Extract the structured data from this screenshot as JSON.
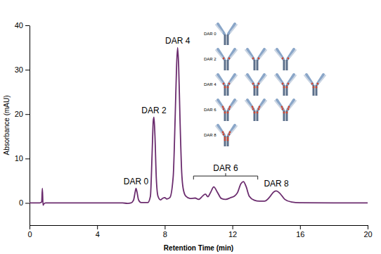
{
  "chart_data": {
    "type": "line",
    "x_label": "Retention Time (min)",
    "y_label": "Absorbance (mAU)",
    "color": "#6b2c6e",
    "x": [
      0,
      0.6,
      0.72,
      0.76,
      0.8,
      0.85,
      0.95,
      2,
      4,
      5.5,
      5.8,
      6.0,
      6.15,
      6.25,
      6.3,
      6.35,
      6.45,
      6.6,
      7.0,
      7.15,
      7.25,
      7.32,
      7.36,
      7.42,
      7.5,
      7.6,
      7.75,
      7.9,
      8.0,
      8.12,
      8.3,
      8.5,
      8.62,
      8.7,
      8.76,
      8.82,
      8.9,
      9.0,
      9.1,
      9.25,
      9.5,
      9.8,
      10.0,
      10.25,
      10.4,
      10.55,
      10.7,
      10.9,
      11.1,
      11.35,
      11.6,
      11.9,
      12.1,
      12.3,
      12.5,
      12.65,
      12.8,
      13.0,
      13.3,
      13.6,
      13.9,
      14.2,
      14.45,
      14.6,
      14.8,
      15.1,
      15.5,
      16,
      18,
      20
    ],
    "values": [
      0,
      0,
      0.2,
      3.3,
      -0.5,
      -0.2,
      0,
      0,
      0,
      0,
      -0.1,
      0,
      0.6,
      2.5,
      3.3,
      2.6,
      0.7,
      0.1,
      0.1,
      1.5,
      11,
      18.5,
      19.3,
      15,
      5.5,
      1.5,
      0.7,
      1.1,
      1.2,
      0.9,
      1.2,
      6,
      20,
      31,
      35,
      31,
      19,
      7,
      3,
      1.5,
      1.0,
      1.1,
      0.8,
      1.6,
      2.0,
      1.4,
      2.3,
      3.6,
      2.5,
      1.0,
      0.8,
      1.2,
      1.5,
      2.3,
      4.3,
      4.8,
      3.8,
      1.5,
      0.6,
      0.4,
      0.4,
      1.3,
      2.5,
      2.7,
      2.2,
      0.8,
      0.2,
      0.05,
      0,
      0
    ],
    "xlim": [
      0,
      20
    ],
    "xticks": [
      0,
      4,
      8,
      12,
      16,
      20
    ],
    "ylim": [
      -5,
      40
    ],
    "yticks": [
      0,
      10,
      20,
      30,
      40
    ],
    "annotations": [
      {
        "text": "DAR 0",
        "x": 6.3,
        "y": 3.3
      },
      {
        "text": "DAR 2",
        "x": 7.36,
        "y": 19.3
      },
      {
        "text": "DAR 4",
        "x": 8.76,
        "y": 35
      },
      {
        "text": "DAR 6",
        "x_range": [
          9.7,
          13.5
        ]
      },
      {
        "text": "DAR 8",
        "x": 14.6,
        "y": 2.7
      }
    ],
    "inset": [
      {
        "label": "DAR 0",
        "count": 1
      },
      {
        "label": "DAR 2",
        "count": 3
      },
      {
        "label": "DAR 4",
        "count": 4
      },
      {
        "label": "DAR 6",
        "count": 3
      },
      {
        "label": "DAR 8",
        "count": 1
      }
    ]
  }
}
